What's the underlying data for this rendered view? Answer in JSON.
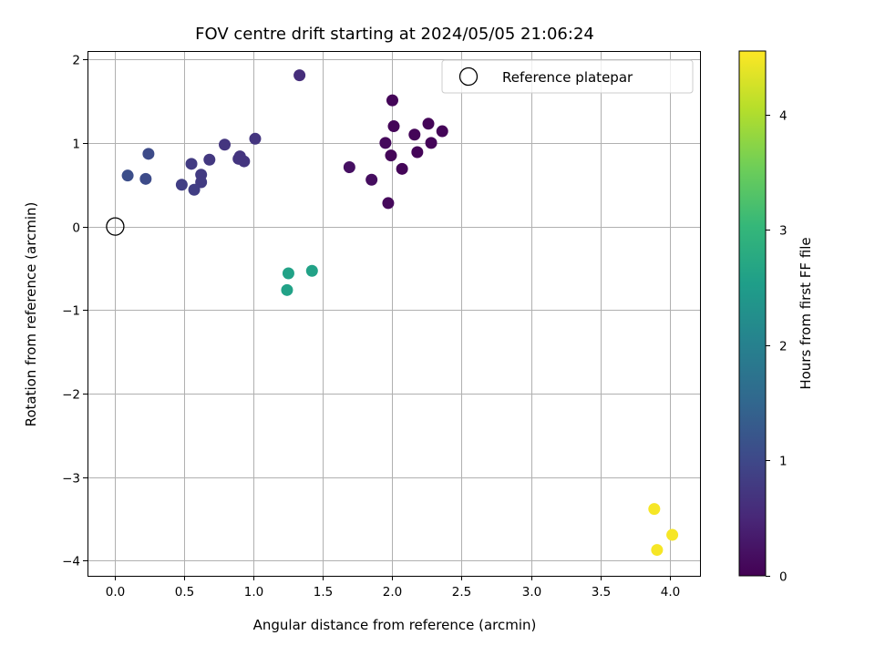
{
  "chart_data": {
    "type": "scatter",
    "title": "FOV centre drift starting at 2024/05/05 21:06:24",
    "xlabel": "Angular distance from reference (arcmin)",
    "ylabel": "Rotation from reference (arcmin)",
    "xlim": [
      -0.2,
      4.22
    ],
    "ylim": [
      -4.18,
      2.1
    ],
    "xticks": [
      "0.0",
      "0.5",
      "1.0",
      "1.5",
      "2.0",
      "2.5",
      "3.0",
      "3.5",
      "4.0"
    ],
    "xtick_values": [
      0.0,
      0.5,
      1.0,
      1.5,
      2.0,
      2.5,
      3.0,
      3.5,
      4.0
    ],
    "yticks": [
      "−4",
      "−3",
      "−2",
      "−1",
      "0",
      "1",
      "2"
    ],
    "ytick_values": [
      -4,
      -3,
      -2,
      -1,
      0,
      1,
      2
    ],
    "grid": true,
    "legend": {
      "label": "Reference platepar",
      "placement": "top-right"
    },
    "reference_point": {
      "x": 0.0,
      "y": 0.0
    },
    "colorbar": {
      "label": "Hours from first FF file",
      "range": [
        0,
        4.55
      ],
      "ticks": [
        "0",
        "1",
        "2",
        "3",
        "4"
      ],
      "tick_values": [
        0,
        1,
        2,
        3,
        4
      ],
      "colormap": "viridis"
    },
    "points": [
      {
        "x": 1.33,
        "y": 1.81,
        "hours": 0.6
      },
      {
        "x": 2.0,
        "y": 1.51,
        "hours": 0.05
      },
      {
        "x": 2.26,
        "y": 1.23,
        "hours": 0.05
      },
      {
        "x": 2.01,
        "y": 1.2,
        "hours": 0.05
      },
      {
        "x": 2.36,
        "y": 1.14,
        "hours": 0.05
      },
      {
        "x": 2.16,
        "y": 1.1,
        "hours": 0.05
      },
      {
        "x": 1.95,
        "y": 1.0,
        "hours": 0.1
      },
      {
        "x": 2.28,
        "y": 1.0,
        "hours": 0.05
      },
      {
        "x": 2.18,
        "y": 0.89,
        "hours": 0.05
      },
      {
        "x": 1.99,
        "y": 0.85,
        "hours": 0.05
      },
      {
        "x": 2.07,
        "y": 0.69,
        "hours": 0.05
      },
      {
        "x": 1.69,
        "y": 0.71,
        "hours": 0.2
      },
      {
        "x": 1.85,
        "y": 0.56,
        "hours": 0.15
      },
      {
        "x": 1.97,
        "y": 0.28,
        "hours": 0.1
      },
      {
        "x": 1.01,
        "y": 1.05,
        "hours": 0.7
      },
      {
        "x": 0.79,
        "y": 0.98,
        "hours": 0.7
      },
      {
        "x": 0.89,
        "y": 0.81,
        "hours": 0.7
      },
      {
        "x": 0.93,
        "y": 0.78,
        "hours": 0.7
      },
      {
        "x": 0.9,
        "y": 0.84,
        "hours": 0.7
      },
      {
        "x": 0.68,
        "y": 0.8,
        "hours": 0.75
      },
      {
        "x": 0.55,
        "y": 0.75,
        "hours": 0.8
      },
      {
        "x": 0.62,
        "y": 0.62,
        "hours": 0.8
      },
      {
        "x": 0.62,
        "y": 0.53,
        "hours": 0.8
      },
      {
        "x": 0.48,
        "y": 0.5,
        "hours": 0.85
      },
      {
        "x": 0.57,
        "y": 0.44,
        "hours": 0.85
      },
      {
        "x": 0.24,
        "y": 0.87,
        "hours": 1.05
      },
      {
        "x": 0.09,
        "y": 0.61,
        "hours": 1.1
      },
      {
        "x": 0.22,
        "y": 0.57,
        "hours": 1.05
      },
      {
        "x": 1.42,
        "y": -0.53,
        "hours": 2.6
      },
      {
        "x": 1.25,
        "y": -0.56,
        "hours": 2.6
      },
      {
        "x": 1.24,
        "y": -0.76,
        "hours": 2.6
      },
      {
        "x": 3.89,
        "y": -3.38,
        "hours": 4.5
      },
      {
        "x": 4.02,
        "y": -3.69,
        "hours": 4.5
      },
      {
        "x": 3.91,
        "y": -3.87,
        "hours": 4.5
      }
    ]
  }
}
